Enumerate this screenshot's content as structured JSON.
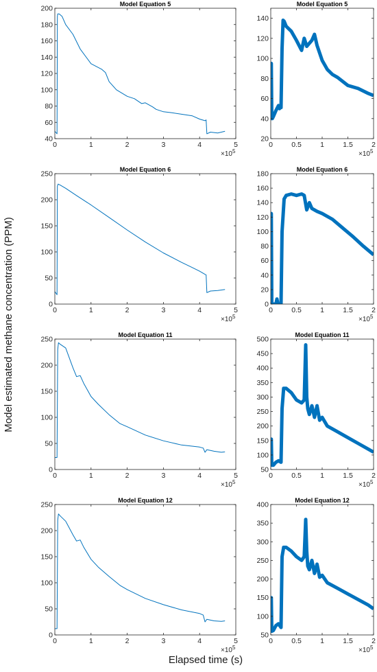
{
  "figure": {
    "ylabel": "Model estimated methane concentration (PPM)",
    "xlabel": "Elapsed time (s)",
    "line_color": "#0072BD",
    "axis_color": "#262626"
  },
  "chart_data": [
    {
      "type": "line",
      "title": "Model Equation 5",
      "xlim": [
        0,
        5
      ],
      "ylim": [
        40,
        200
      ],
      "xticks": [
        0,
        1,
        2,
        3,
        4,
        5
      ],
      "yticks": [
        40,
        60,
        80,
        100,
        120,
        140,
        160,
        180,
        200
      ],
      "x_multiplier": "×10^5",
      "band": false,
      "x": [
        0,
        0.04,
        0.06,
        0.07,
        0.08,
        0.12,
        0.2,
        0.3,
        0.5,
        0.7,
        1.0,
        1.3,
        1.4,
        1.5,
        1.7,
        2.0,
        2.2,
        2.4,
        2.5,
        2.7,
        2.8,
        3.0,
        3.2,
        3.5,
        3.8,
        4.0,
        4.15,
        4.18,
        4.2,
        4.3,
        4.5,
        4.7
      ],
      "y": [
        49,
        47,
        46,
        190,
        193,
        193,
        190,
        180,
        168,
        150,
        132,
        125,
        121,
        110,
        100,
        92,
        89,
        83,
        84,
        79,
        76,
        73,
        72,
        70,
        68,
        64,
        62,
        63,
        46,
        48,
        47,
        49
      ]
    },
    {
      "type": "line",
      "title": "Model Equation 5",
      "xlim": [
        0,
        2
      ],
      "ylim": [
        20,
        150
      ],
      "xticks": [
        0,
        0.5,
        1,
        1.5,
        2
      ],
      "yticks": [
        20,
        40,
        60,
        80,
        100,
        120,
        140
      ],
      "x_multiplier": "×10^5",
      "band": true,
      "x": [
        0,
        0.01,
        0.02,
        0.03,
        0.05,
        0.1,
        0.15,
        0.17,
        0.19,
        0.2,
        0.22,
        0.24,
        0.26,
        0.3,
        0.4,
        0.5,
        0.6,
        0.65,
        0.7,
        0.8,
        0.85,
        0.9,
        1.0,
        1.1,
        1.2,
        1.3,
        1.5,
        1.7,
        1.9,
        2.0
      ],
      "y": [
        40,
        95,
        40,
        40,
        42,
        48,
        53,
        50,
        53,
        51,
        110,
        138,
        137,
        132,
        127,
        118,
        108,
        120,
        112,
        118,
        124,
        113,
        98,
        89,
        84,
        81,
        73,
        70,
        65,
        63
      ]
    },
    {
      "type": "line",
      "title": "Model Equation 6",
      "xlim": [
        0,
        5
      ],
      "ylim": [
        0,
        250
      ],
      "xticks": [
        0,
        1,
        2,
        3,
        4,
        5
      ],
      "yticks": [
        0,
        50,
        100,
        150,
        200,
        250
      ],
      "x_multiplier": "×10^5",
      "band": false,
      "x": [
        0,
        0.04,
        0.06,
        0.07,
        0.09,
        0.15,
        0.3,
        0.6,
        1.0,
        1.5,
        2.0,
        2.5,
        3.0,
        3.5,
        3.8,
        4.0,
        4.15,
        4.18,
        4.2,
        4.3,
        4.5,
        4.7
      ],
      "y": [
        24,
        20,
        18,
        226,
        230,
        228,
        222,
        208,
        190,
        166,
        142,
        119,
        98,
        80,
        70,
        63,
        57,
        56,
        22,
        25,
        26,
        28
      ]
    },
    {
      "type": "line",
      "title": "Model Equation 6",
      "xlim": [
        0,
        2
      ],
      "ylim": [
        0,
        180
      ],
      "xticks": [
        0,
        0.5,
        1,
        1.5,
        2
      ],
      "yticks": [
        0,
        20,
        40,
        60,
        80,
        100,
        120,
        140,
        160,
        180
      ],
      "x_multiplier": "×10^5",
      "band": true,
      "x": [
        0,
        0.01,
        0.02,
        0.06,
        0.1,
        0.12,
        0.14,
        0.15,
        0.2,
        0.22,
        0.26,
        0.3,
        0.4,
        0.5,
        0.6,
        0.65,
        0.7,
        0.75,
        0.8,
        0.9,
        1.0,
        1.2,
        1.4,
        1.6,
        1.8,
        2.0
      ],
      "y": [
        0,
        125,
        0,
        0,
        0,
        7,
        0,
        0,
        0,
        100,
        145,
        150,
        152,
        150,
        152,
        150,
        130,
        140,
        132,
        128,
        125,
        117,
        105,
        93,
        80,
        68
      ]
    },
    {
      "type": "line",
      "title": "Model Equation 11",
      "xlim": [
        0,
        5
      ],
      "ylim": [
        0,
        250
      ],
      "xticks": [
        0,
        1,
        2,
        3,
        4,
        5
      ],
      "yticks": [
        0,
        50,
        100,
        150,
        200,
        250
      ],
      "x_multiplier": "×10^5",
      "band": false,
      "x": [
        0,
        0.06,
        0.08,
        0.1,
        0.15,
        0.3,
        0.5,
        0.6,
        0.7,
        0.8,
        1.0,
        1.2,
        1.5,
        1.8,
        2.0,
        2.5,
        3.0,
        3.5,
        4.0,
        4.1,
        4.15,
        4.2,
        4.4,
        4.6,
        4.7
      ],
      "y": [
        23,
        23,
        230,
        243,
        240,
        233,
        195,
        178,
        180,
        165,
        140,
        125,
        105,
        88,
        82,
        66,
        55,
        47,
        43,
        41,
        33,
        38,
        35,
        33,
        34
      ]
    },
    {
      "type": "line",
      "title": "Model Equation 11",
      "xlim": [
        0,
        2
      ],
      "ylim": [
        50,
        500
      ],
      "xticks": [
        0,
        0.5,
        1,
        1.5,
        2
      ],
      "yticks": [
        50,
        100,
        150,
        200,
        250,
        300,
        350,
        400,
        450,
        500
      ],
      "x_multiplier": "×10^5",
      "band": true,
      "x": [
        0,
        0.01,
        0.02,
        0.05,
        0.1,
        0.15,
        0.2,
        0.22,
        0.25,
        0.3,
        0.4,
        0.5,
        0.6,
        0.65,
        0.68,
        0.7,
        0.72,
        0.75,
        0.8,
        0.85,
        0.9,
        0.95,
        1.0,
        1.1,
        1.3,
        1.5,
        1.7,
        1.9,
        2.0
      ],
      "y": [
        65,
        155,
        65,
        65,
        75,
        80,
        75,
        260,
        330,
        330,
        315,
        290,
        280,
        290,
        480,
        300,
        260,
        240,
        270,
        230,
        270,
        220,
        230,
        200,
        180,
        160,
        140,
        120,
        110
      ]
    },
    {
      "type": "line",
      "title": "Model Equation 12",
      "xlim": [
        0,
        5
      ],
      "ylim": [
        0,
        250
      ],
      "xticks": [
        0,
        1,
        2,
        3,
        4,
        5
      ],
      "yticks": [
        0,
        50,
        100,
        150,
        200,
        250
      ],
      "x_multiplier": "×10^5",
      "band": false,
      "x": [
        0,
        0.06,
        0.08,
        0.1,
        0.15,
        0.3,
        0.5,
        0.6,
        0.7,
        0.8,
        1.0,
        1.2,
        1.5,
        1.8,
        2.0,
        2.5,
        3.0,
        3.5,
        4.0,
        4.1,
        4.15,
        4.2,
        4.4,
        4.6,
        4.7
      ],
      "y": [
        12,
        12,
        220,
        232,
        228,
        218,
        192,
        180,
        182,
        168,
        145,
        130,
        112,
        95,
        87,
        70,
        58,
        48,
        41,
        38,
        25,
        30,
        27,
        26,
        27
      ]
    },
    {
      "type": "line",
      "title": "Model Equation 12",
      "xlim": [
        0,
        2
      ],
      "ylim": [
        50,
        400
      ],
      "xticks": [
        0,
        0.5,
        1,
        1.5,
        2
      ],
      "yticks": [
        50,
        100,
        150,
        200,
        250,
        300,
        350,
        400
      ],
      "x_multiplier": "×10^5",
      "band": true,
      "x": [
        0,
        0.01,
        0.02,
        0.05,
        0.1,
        0.15,
        0.2,
        0.22,
        0.25,
        0.3,
        0.4,
        0.5,
        0.6,
        0.65,
        0.68,
        0.7,
        0.72,
        0.75,
        0.8,
        0.85,
        0.9,
        0.95,
        1.0,
        1.1,
        1.3,
        1.5,
        1.7,
        1.9,
        2.0
      ],
      "y": [
        60,
        150,
        60,
        62,
        75,
        80,
        70,
        260,
        285,
        285,
        275,
        260,
        250,
        260,
        360,
        275,
        235,
        225,
        250,
        215,
        240,
        205,
        210,
        190,
        175,
        160,
        145,
        130,
        120
      ]
    }
  ]
}
